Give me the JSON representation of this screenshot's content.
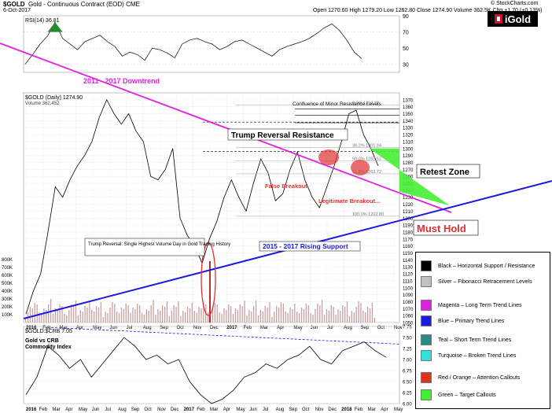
{
  "header": {
    "symbol": "$GOLD",
    "name": "Gold - Continuous Contract (EOD)",
    "exchange": "CME",
    "date": "6-Oct-2017",
    "quote": "Open 1270.60  High 1279.20  Low 1262.80  Close 1274.90  Volume 362.5K  Chg +1.70 (+0.13%)",
    "source": "© StockCharts.com",
    "logo_text": "iGold",
    "rsi_label": "RSI(14) 36.81",
    "price_label": "$GOLD (Daily) 1274.90",
    "volume_label": "Volume 362,452",
    "ratio_label": "$GOLD:$CRB 7.05"
  },
  "colors": {
    "magenta": "#e020e0",
    "blue": "#1a1ae0",
    "red": "#e03030",
    "green": "#44ee33",
    "rsi_fill": "#2a8a2a",
    "volume": "#b03030"
  },
  "chart_data": [
    {
      "type": "line",
      "panel": "RSI",
      "title": "RSI(14) 36.81",
      "ylim": [
        20,
        90
      ],
      "yticks": [
        30,
        50,
        70,
        90
      ],
      "series": [
        {
          "name": "RSI(14)",
          "values": [
            30,
            42,
            55,
            65,
            82,
            62,
            55,
            48,
            58,
            62,
            66,
            58,
            52,
            40,
            45,
            42,
            35,
            50,
            48,
            44,
            38,
            55,
            60,
            62,
            58,
            55,
            48,
            52,
            58,
            60,
            55,
            50,
            45,
            40,
            48,
            52,
            55,
            58,
            62,
            68,
            75,
            80,
            72,
            60,
            45,
            37
          ]
        }
      ]
    },
    {
      "type": "line",
      "panel": "Price",
      "title": "$GOLD (Daily) 1274.90",
      "ylim": [
        1050,
        1380
      ],
      "x_ticks": [
        "2016",
        "Feb",
        "Mar",
        "Apr",
        "May",
        "Jun",
        "Jul",
        "Aug",
        "Sep",
        "Oct",
        "Nov",
        "Dec",
        "2017",
        "Feb",
        "Mar",
        "Apr",
        "May",
        "Jun",
        "Jul",
        "Aug",
        "Sep",
        "Oct",
        "Nov"
      ],
      "price_ticks": [
        1050,
        1060,
        1070,
        1080,
        1090,
        1100,
        1110,
        1120,
        1130,
        1140,
        1150,
        1160,
        1170,
        1180,
        1190,
        1200,
        1210,
        1220,
        1230,
        1240,
        1250,
        1260,
        1270,
        1280,
        1290,
        1300,
        1310,
        1320,
        1330,
        1340,
        1350,
        1360,
        1370
      ],
      "volume_ticks": [
        "100K",
        "200K",
        "300K",
        "400K",
        "500K",
        "600K",
        "700K",
        "800K"
      ],
      "series": [
        {
          "name": "$GOLD",
          "values": [
            1062,
            1095,
            1120,
            1180,
            1245,
            1230,
            1255,
            1275,
            1290,
            1310,
            1345,
            1370,
            1350,
            1335,
            1350,
            1325,
            1310,
            1260,
            1255,
            1270,
            1300,
            1200,
            1175,
            1160,
            1135,
            1170,
            1195,
            1230,
            1255,
            1230,
            1210,
            1250,
            1285,
            1265,
            1225,
            1235,
            1270,
            1295,
            1255,
            1230,
            1215,
            1245,
            1275,
            1310,
            1350,
            1355,
            1320,
            1300,
            1275
          ]
        }
      ],
      "fibonacci": [
        {
          "label": "0.0%  1362.22",
          "value": 1362.22
        },
        {
          "label": "38.2%  1301.34",
          "value": 1301.34
        },
        {
          "label": "50.0%  1282.52",
          "value": 1282.52
        },
        {
          "label": "61.8%  1263.72",
          "value": 1263.72
        },
        {
          "label": "100.0%  1202.80",
          "value": 1202.8
        }
      ],
      "annotations": [
        "2011 - 2017 Downtrend",
        "Trump Reversal Resistance",
        "Confluence of Minor Resistance Levels",
        "False Breakout",
        "Legitimate Breakout...",
        "Retest Zone",
        "Must Hold",
        "2015 - 2017 Rising Support",
        "Trump Reversal: Single Highest Volume Day in Gold Trading History"
      ]
    },
    {
      "type": "line",
      "panel": "Ratio",
      "title": "$GOLD:$CRB 7.05",
      "ylim": [
        6.0,
        7.75
      ],
      "yticks": [
        6.0,
        6.25,
        6.5,
        6.75,
        7.0,
        7.25,
        7.5,
        7.75
      ],
      "x_ticks": [
        "2016",
        "Feb",
        "Mar",
        "Apr",
        "May",
        "Jun",
        "Jul",
        "Aug",
        "Sep",
        "Oct",
        "Nov",
        "Dec",
        "2017",
        "Feb",
        "Mar",
        "Apr",
        "May",
        "Jun",
        "Jul",
        "Aug",
        "Sep",
        "Oct",
        "Nov",
        "Dec",
        "2018",
        "Feb",
        "Mar",
        "Apr",
        "May"
      ],
      "series": [
        {
          "name": "Gold vs CRB Commodity Index",
          "values": [
            6.2,
            6.6,
            7.3,
            7.1,
            6.8,
            7.0,
            6.6,
            6.9,
            7.2,
            7.5,
            7.3,
            7.0,
            7.1,
            6.9,
            7.0,
            6.5,
            6.2,
            6.0,
            6.1,
            6.3,
            6.6,
            6.7,
            6.9,
            6.8,
            7.0,
            7.1,
            7.3,
            7.0,
            6.9,
            7.2,
            7.3,
            7.4,
            7.2,
            7.05
          ]
        }
      ]
    }
  ],
  "legend": {
    "items": [
      {
        "label": "Black – Horizontal Support / Resistance",
        "color": "#000000"
      },
      {
        "label": "Silver – Fibonacci Retracement Levels",
        "color": "#c0c0c0"
      },
      {
        "label": "Magenta – Long Term Trend Lines",
        "color": "#e020e0"
      },
      {
        "label": "Blue – Primary Trend Lines",
        "color": "#1a1ae0"
      },
      {
        "label": "Teal – Short Term Trend Lines",
        "color": "#2a8a8a"
      },
      {
        "label": "Turquoise – Broken Trend Lines",
        "color": "#30e0e0"
      },
      {
        "label": "Red / Orange – Attention Callouts",
        "color": "#e03020"
      },
      {
        "label": "Green – Target Callouts",
        "color": "#44ee33"
      }
    ]
  }
}
